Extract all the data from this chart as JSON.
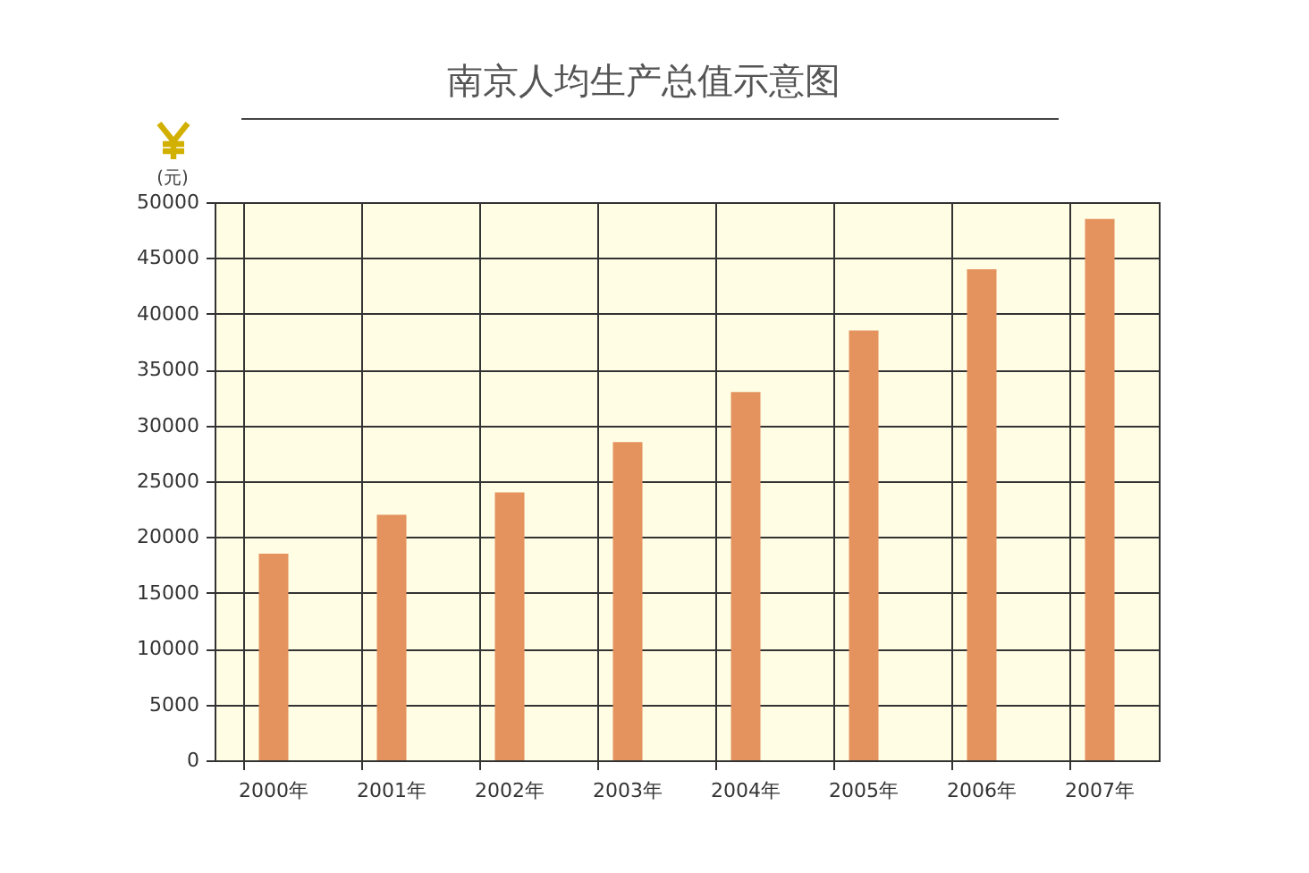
{
  "chart_data": {
    "type": "bar",
    "title": "南京人均生产总值示意图",
    "ylabel": "(元)",
    "categories": [
      "2000年",
      "2001年",
      "2002年",
      "2003年",
      "2004年",
      "2005年",
      "2006年",
      "2007年"
    ],
    "values": [
      18500,
      22000,
      24000,
      28500,
      33000,
      38500,
      44000,
      48500
    ],
    "color": "#e4935f",
    "ylim": [
      0,
      50000
    ],
    "yticks": [
      0,
      5000,
      10000,
      15000,
      20000,
      25000,
      30000,
      35000,
      40000,
      45000,
      50000
    ],
    "grid": true
  }
}
